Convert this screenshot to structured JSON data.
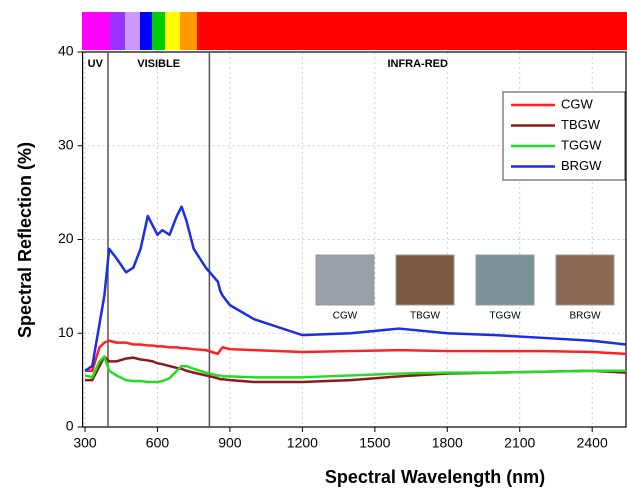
{
  "chart_data": {
    "type": "line",
    "xlabel": "Spectral Wavelength (nm)",
    "ylabel": "Spectral Reflection (%)",
    "x": [
      300,
      330,
      360,
      380,
      400,
      430,
      470,
      500,
      530,
      560,
      580,
      600,
      620,
      650,
      680,
      700,
      720,
      750,
      800,
      850,
      860,
      870,
      900,
      1000,
      1200,
      1400,
      1600,
      1800,
      2000,
      2200,
      2400,
      2540
    ],
    "series": [
      {
        "name": "CGW",
        "color": "#ff2020",
        "values": [
          6,
          6,
          8.5,
          9,
          9.2,
          9,
          9,
          8.8,
          8.8,
          8.7,
          8.7,
          8.6,
          8.6,
          8.5,
          8.5,
          8.4,
          8.4,
          8.3,
          8.2,
          7.8,
          8.2,
          8.5,
          8.3,
          8.2,
          8,
          8.1,
          8.2,
          8.1,
          8.1,
          8.1,
          8,
          7.8
        ]
      },
      {
        "name": "TBGW",
        "color": "#8b1a1a",
        "values": [
          5,
          5,
          6.5,
          7.5,
          7,
          7,
          7.3,
          7.4,
          7.2,
          7.1,
          7,
          6.8,
          6.7,
          6.5,
          6.3,
          6.2,
          6,
          5.8,
          5.5,
          5.2,
          5.1,
          5.1,
          5,
          4.8,
          4.8,
          5,
          5.4,
          5.7,
          5.8,
          5.9,
          6,
          5.8
        ]
      },
      {
        "name": "TGGW",
        "color": "#22dd22",
        "values": [
          5.5,
          5.3,
          7,
          7.5,
          6,
          5.5,
          5,
          4.9,
          4.9,
          4.8,
          4.8,
          4.8,
          4.9,
          5.2,
          6,
          6.5,
          6.5,
          6.2,
          5.8,
          5.5,
          5.5,
          5.4,
          5.4,
          5.3,
          5.3,
          5.5,
          5.7,
          5.8,
          5.8,
          5.9,
          6,
          6
        ]
      },
      {
        "name": "BRGW",
        "color": "#1a2ee8",
        "values": [
          6,
          6.5,
          11,
          14,
          19,
          18,
          16.5,
          17,
          19,
          22.5,
          21.5,
          20.5,
          21,
          20.5,
          22.5,
          23.5,
          22,
          19,
          17,
          15.5,
          14.5,
          14,
          13,
          11.5,
          9.8,
          10,
          10.5,
          10,
          9.8,
          9.5,
          9.2,
          8.8
        ]
      }
    ],
    "xlim": [
      290,
      2540
    ],
    "ylim": [
      0,
      40
    ],
    "xticks": [
      300,
      600,
      900,
      1200,
      1500,
      1800,
      2100,
      2400
    ],
    "yticks": [
      0,
      10,
      20,
      30,
      40
    ],
    "grid": true,
    "legend": "upper right",
    "regions": [
      {
        "label": "UV",
        "end": 395
      },
      {
        "label": "VISIBLE",
        "end": 815
      },
      {
        "label": "INFRA-RED"
      }
    ],
    "photos": [
      "CGW",
      "TBGW",
      "TGGW",
      "BRGW"
    ]
  }
}
